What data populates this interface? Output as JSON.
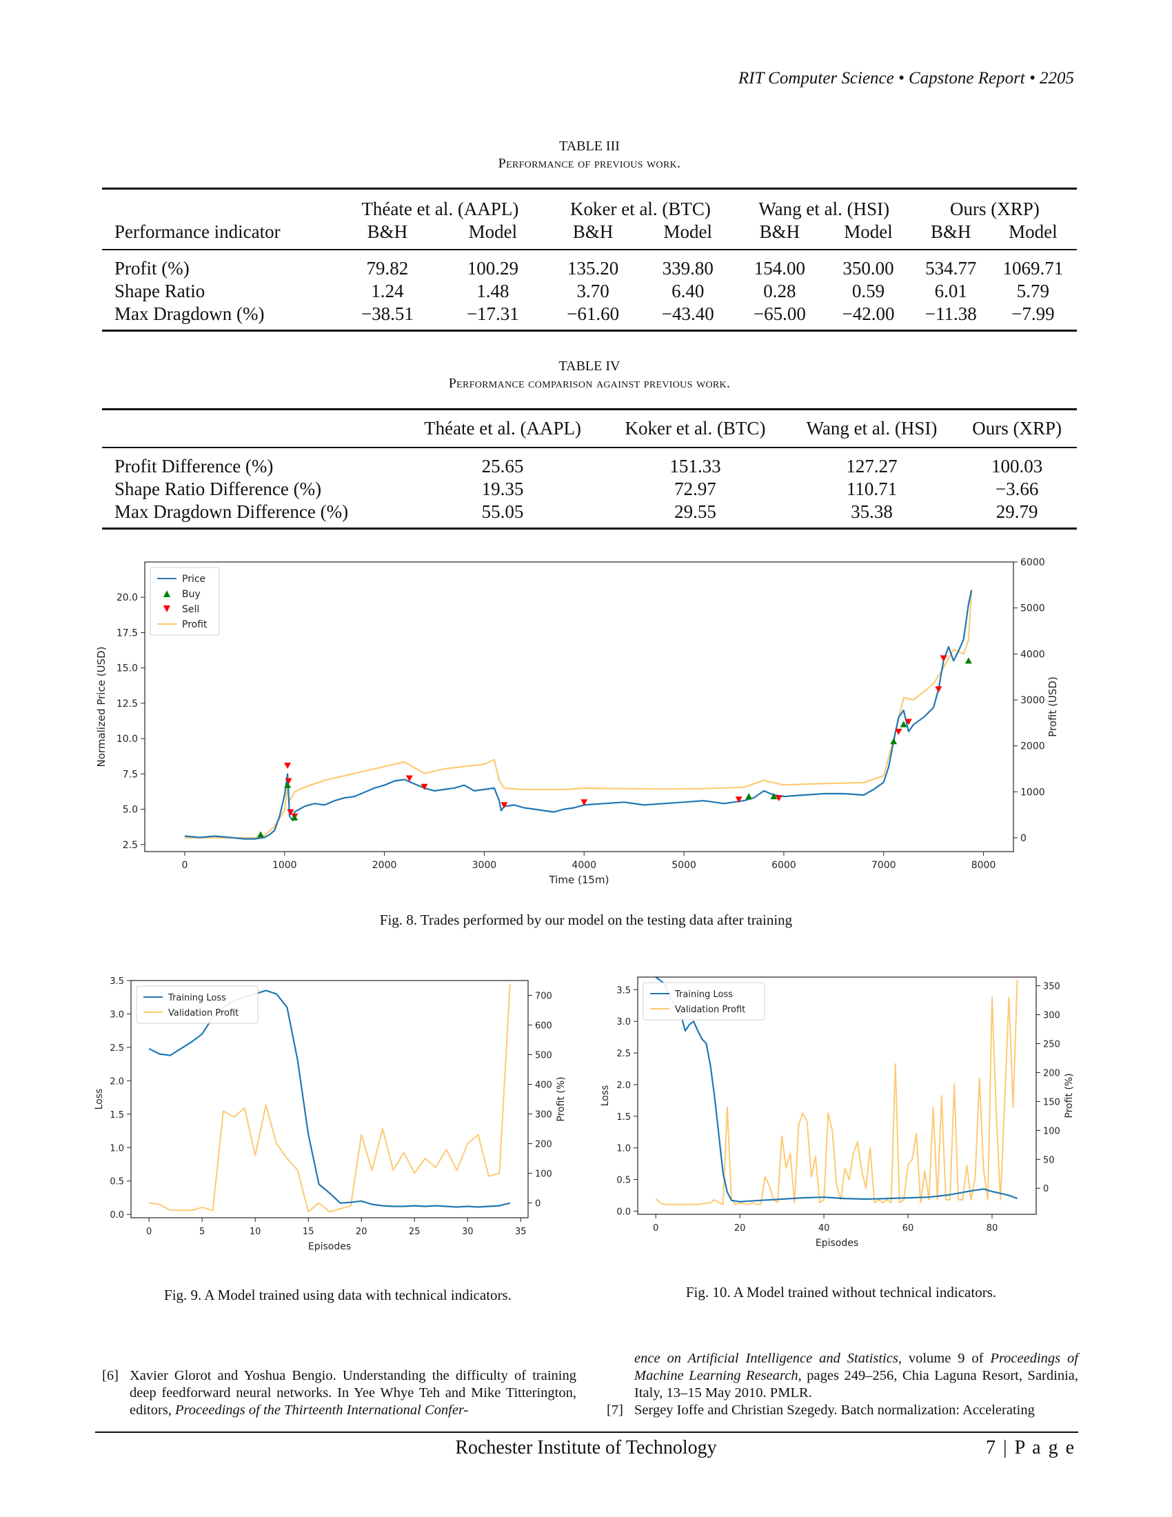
{
  "header": {
    "running_title": "RIT Computer Science  •  Capstone Report  •  2205"
  },
  "table3": {
    "label": "TABLE III",
    "caption": "Performance of previous work.",
    "row_header": "Performance indicator",
    "groups": [
      "Théate et al. (AAPL)",
      "Koker et al. (BTC)",
      "Wang et al. (HSI)",
      "Ours (XRP)"
    ],
    "subheaders": [
      "B&H",
      "Model",
      "B&H",
      "Model",
      "B&H",
      "Model",
      "B&H",
      "Model"
    ],
    "rows": [
      {
        "label": "Profit (%)",
        "values": [
          "79.82",
          "100.29",
          "135.20",
          "339.80",
          "154.00",
          "350.00",
          "534.77",
          "1069.71"
        ]
      },
      {
        "label": "Shape Ratio",
        "values": [
          "1.24",
          "1.48",
          "3.70",
          "6.40",
          "0.28",
          "0.59",
          "6.01",
          "5.79"
        ]
      },
      {
        "label": "Max Dragdown (%)",
        "values": [
          "−38.51",
          "−17.31",
          "−61.60",
          "−43.40",
          "−65.00",
          "−42.00",
          "−11.38",
          "−7.99"
        ]
      }
    ]
  },
  "table4": {
    "label": "TABLE IV",
    "caption": "Performance comparison against previous work.",
    "headers": [
      "Théate et al. (AAPL)",
      "Koker et al. (BTC)",
      "Wang et al. (HSI)",
      "Ours (XRP)"
    ],
    "rows": [
      {
        "label": "Profit Difference (%)",
        "values": [
          "25.65",
          "151.33",
          "127.27",
          "100.03"
        ]
      },
      {
        "label": "Shape Ratio Difference (%)",
        "values": [
          "19.35",
          "72.97",
          "110.71",
          "−3.66"
        ]
      },
      {
        "label": "Max Dragdown Difference (%)",
        "values": [
          "55.05",
          "29.55",
          "35.38",
          "29.79"
        ]
      }
    ]
  },
  "fig8": {
    "caption": "Fig. 8.  Trades performed by our model on the testing data after training",
    "chart_data": {
      "type": "line",
      "xlabel": "Time (15m)",
      "ylabel": "Normalized Price (USD)",
      "y2label": "Profit (USD)",
      "xlim": [
        -400,
        8300
      ],
      "ylim": [
        2.0,
        22.5
      ],
      "y2lim": [
        -300,
        6000
      ],
      "xticks": [
        0,
        1000,
        2000,
        3000,
        4000,
        5000,
        6000,
        7000,
        8000
      ],
      "yticks": [
        2.5,
        5.0,
        7.5,
        10.0,
        12.5,
        15.0,
        17.5,
        20.0
      ],
      "y2ticks": [
        0,
        1000,
        2000,
        3000,
        4000,
        5000,
        6000
      ],
      "legend": [
        "Price",
        "Buy",
        "Sell",
        "Profit"
      ],
      "legend_position": "top-left",
      "colors": {
        "price": "#1f77b4",
        "buy": "#008000",
        "sell": "#ff0000",
        "profit": "#fdc76b"
      },
      "price_x": [
        0,
        150,
        300,
        450,
        600,
        700,
        800,
        850,
        900,
        950,
        1000,
        1030,
        1050,
        1080,
        1100,
        1150,
        1200,
        1300,
        1400,
        1500,
        1600,
        1700,
        1800,
        1900,
        2000,
        2100,
        2200,
        2300,
        2400,
        2500,
        2600,
        2700,
        2800,
        2900,
        3000,
        3100,
        3150,
        3170,
        3200,
        3300,
        3400,
        3500,
        3600,
        3700,
        3800,
        3900,
        4000,
        4200,
        4400,
        4600,
        4800,
        5000,
        5200,
        5400,
        5600,
        5700,
        5800,
        5900,
        6000,
        6200,
        6400,
        6600,
        6800,
        6900,
        7000,
        7050,
        7100,
        7150,
        7200,
        7250,
        7300,
        7400,
        7500,
        7550,
        7600,
        7650,
        7700,
        7750,
        7800,
        7850,
        7880
      ],
      "price_y": [
        3.1,
        3.0,
        3.1,
        3.0,
        2.9,
        2.9,
        3.0,
        3.2,
        3.5,
        4.5,
        6.0,
        7.5,
        4.5,
        4.2,
        4.8,
        5.0,
        5.2,
        5.4,
        5.3,
        5.6,
        5.8,
        5.9,
        6.2,
        6.5,
        6.7,
        7.0,
        7.1,
        6.8,
        6.5,
        6.3,
        6.4,
        6.5,
        6.7,
        6.3,
        6.4,
        6.5,
        5.6,
        4.9,
        5.2,
        5.3,
        5.1,
        5.0,
        4.9,
        4.8,
        5.0,
        5.1,
        5.3,
        5.4,
        5.5,
        5.3,
        5.4,
        5.5,
        5.6,
        5.4,
        5.6,
        5.8,
        6.3,
        6.0,
        5.9,
        6.0,
        6.1,
        6.1,
        6.0,
        6.4,
        6.9,
        8.0,
        9.8,
        11.5,
        12.0,
        10.5,
        11.0,
        11.5,
        12.2,
        13.5,
        15.5,
        16.5,
        15.5,
        16.2,
        17.0,
        19.5,
        20.5
      ],
      "profit_x": [
        0,
        600,
        700,
        800,
        900,
        1000,
        1030,
        1050,
        1100,
        1200,
        1400,
        1600,
        1800,
        2000,
        2200,
        2400,
        2600,
        2800,
        3000,
        3100,
        3150,
        3200,
        3400,
        3600,
        3800,
        4000,
        4400,
        4800,
        5200,
        5600,
        5800,
        6000,
        6400,
        6800,
        7000,
        7100,
        7200,
        7300,
        7500,
        7600,
        7700,
        7800,
        7850,
        7880
      ],
      "profit_y": [
        0,
        0,
        0,
        50,
        250,
        600,
        1100,
        800,
        1000,
        1100,
        1250,
        1350,
        1450,
        1550,
        1650,
        1400,
        1500,
        1550,
        1600,
        1700,
        1250,
        1080,
        1050,
        1050,
        1050,
        1080,
        1070,
        1060,
        1070,
        1100,
        1250,
        1150,
        1180,
        1200,
        1350,
        2150,
        3050,
        3000,
        3350,
        3700,
        4100,
        4000,
        4300,
        5400
      ],
      "buy_points": [
        [
          760,
          3.2
        ],
        [
          1030,
          6.7
        ],
        [
          1100,
          4.4
        ],
        [
          5650,
          5.9
        ],
        [
          5900,
          5.9
        ],
        [
          7100,
          9.8
        ],
        [
          7200,
          11.0
        ],
        [
          7850,
          15.5
        ]
      ],
      "sell_points": [
        [
          1030,
          8.1
        ],
        [
          1040,
          7.0
        ],
        [
          1060,
          4.8
        ],
        [
          1100,
          4.5
        ],
        [
          2250,
          7.2
        ],
        [
          2400,
          6.6
        ],
        [
          3200,
          5.3
        ],
        [
          4000,
          5.5
        ],
        [
          5550,
          5.7
        ],
        [
          5950,
          5.8
        ],
        [
          7150,
          10.5
        ],
        [
          7250,
          11.2
        ],
        [
          7550,
          13.5
        ],
        [
          7600,
          15.7
        ]
      ]
    }
  },
  "fig9": {
    "caption": "Fig. 9.  A Model trained using data with technical indicators.",
    "chart_data": {
      "type": "line",
      "xlabel": "Episodes",
      "ylabel": "Loss",
      "y2label": "Profit (%)",
      "xlim": [
        -1.7,
        35.7
      ],
      "ylim": [
        -0.05,
        3.5
      ],
      "y2lim": [
        -50,
        750
      ],
      "xticks": [
        0,
        5,
        10,
        15,
        20,
        25,
        30,
        35
      ],
      "yticks": [
        0.0,
        0.5,
        1.0,
        1.5,
        2.0,
        2.5,
        3.0,
        3.5
      ],
      "y2ticks": [
        0,
        100,
        200,
        300,
        400,
        500,
        600,
        700
      ],
      "legend": [
        "Training Loss",
        "Validation Profit"
      ],
      "legend_position": "top-left",
      "colors": {
        "loss": "#1f77b4",
        "profit": "#fdc76b"
      },
      "loss_x": [
        0,
        1,
        2,
        3,
        4,
        5,
        6,
        7,
        8,
        9,
        10,
        11,
        12,
        13,
        14,
        15,
        16,
        17,
        18,
        19,
        20,
        21,
        22,
        23,
        24,
        25,
        26,
        27,
        28,
        29,
        30,
        31,
        32,
        33,
        34
      ],
      "loss_y": [
        2.48,
        2.4,
        2.38,
        2.48,
        2.58,
        2.7,
        2.95,
        3.1,
        3.2,
        3.25,
        3.3,
        3.35,
        3.3,
        3.1,
        2.3,
        1.2,
        0.45,
        0.32,
        0.17,
        0.18,
        0.2,
        0.15,
        0.13,
        0.12,
        0.12,
        0.13,
        0.12,
        0.13,
        0.12,
        0.11,
        0.12,
        0.11,
        0.12,
        0.13,
        0.17
      ],
      "profit_x": [
        0,
        1,
        2,
        3,
        4,
        5,
        6,
        7,
        8,
        9,
        10,
        11,
        12,
        13,
        14,
        15,
        16,
        17,
        18,
        19,
        20,
        21,
        22,
        23,
        24,
        25,
        26,
        27,
        28,
        29,
        30,
        31,
        32,
        33,
        34
      ],
      "profit_y": [
        0,
        -5,
        -25,
        -25,
        -25,
        -15,
        -25,
        310,
        290,
        320,
        160,
        330,
        200,
        150,
        110,
        -30,
        0,
        -30,
        -20,
        -10,
        230,
        110,
        250,
        110,
        170,
        100,
        150,
        120,
        180,
        110,
        200,
        230,
        90,
        100,
        740
      ]
    }
  },
  "fig10": {
    "caption": "Fig. 10.  A Model trained without technical indicators.",
    "chart_data": {
      "type": "line",
      "xlabel": "Episodes",
      "ylabel": "Loss",
      "y2label": "Profit (%)",
      "xlim": [
        -4.3,
        90.5
      ],
      "ylim": [
        -0.05,
        3.7
      ],
      "y2lim": [
        -45,
        365
      ],
      "xticks": [
        0,
        20,
        40,
        60,
        80
      ],
      "yticks": [
        0.0,
        0.5,
        1.0,
        1.5,
        2.0,
        2.5,
        3.0,
        3.5
      ],
      "y2ticks": [
        0,
        50,
        100,
        150,
        200,
        250,
        300,
        350
      ],
      "legend": [
        "Training Loss",
        "Validation Profit"
      ],
      "legend_position": "top-left",
      "colors": {
        "loss": "#1f77b4",
        "profit": "#fdc76b"
      },
      "loss_x": [
        0,
        2,
        4,
        6,
        7,
        8,
        9,
        10,
        11,
        12,
        13,
        14,
        15,
        16,
        17,
        18,
        20,
        25,
        30,
        35,
        40,
        45,
        50,
        55,
        60,
        65,
        70,
        75,
        78,
        80,
        82,
        84,
        86
      ],
      "loss_y": [
        3.7,
        3.6,
        3.3,
        3.1,
        2.85,
        2.95,
        3.0,
        2.85,
        2.72,
        2.65,
        2.3,
        1.8,
        1.2,
        0.6,
        0.3,
        0.17,
        0.15,
        0.17,
        0.19,
        0.21,
        0.22,
        0.2,
        0.19,
        0.2,
        0.21,
        0.22,
        0.26,
        0.32,
        0.35,
        0.31,
        0.28,
        0.25,
        0.2
      ],
      "profit_x": [
        0,
        1,
        2,
        5,
        10,
        13,
        14,
        15,
        16,
        17,
        18,
        19,
        20,
        22,
        23,
        24,
        25,
        26,
        27,
        28,
        29,
        30,
        31,
        32,
        33,
        34,
        35,
        36,
        37,
        38,
        39,
        40,
        41,
        42,
        43,
        44,
        45,
        46,
        47,
        48,
        49,
        50,
        51,
        52,
        53,
        54,
        55,
        56,
        57,
        58,
        59,
        60,
        61,
        62,
        63,
        64,
        65,
        66,
        67,
        68,
        69,
        70,
        71,
        72,
        73,
        74,
        75,
        76,
        77,
        78,
        79,
        80,
        81,
        82,
        83,
        84,
        85,
        86
      ],
      "profit_y": [
        -18,
        -25,
        -28,
        -28,
        -28,
        -25,
        -20,
        -25,
        -28,
        140,
        -20,
        -28,
        -25,
        -28,
        -25,
        -28,
        -28,
        20,
        5,
        -20,
        -25,
        90,
        35,
        60,
        -25,
        110,
        130,
        115,
        20,
        55,
        -25,
        -20,
        130,
        100,
        5,
        -20,
        35,
        15,
        60,
        80,
        30,
        0,
        70,
        -25,
        -20,
        -25,
        -20,
        -25,
        215,
        -25,
        -20,
        40,
        50,
        95,
        -25,
        30,
        -20,
        140,
        -20,
        160,
        -20,
        -20,
        180,
        -20,
        -20,
        40,
        -20,
        20,
        190,
        30,
        -20,
        330,
        130,
        -20,
        150,
        330,
        140,
        360
      ]
    }
  },
  "references": {
    "ref6_num": "[6]",
    "ref6_a": "Xavier Glorot and Yoshua Bengio.  Understanding the difficulty of training deep feedforward neural networks. In Yee Whye Teh and Mike Titterington, editors, ",
    "ref6_b": "Proceedings of the Thirteenth International Confer-",
    "ref6_c": "ence on Artificial Intelligence and Statistics",
    "ref6_d": ", volume 9 of ",
    "ref6_e": "Proceedings of Machine Learning Research",
    "ref6_f": ", pages 249–256, Chia Laguna Resort, Sardinia, Italy, 13–15 May 2010. PMLR.",
    "ref7_num": "[7]",
    "ref7_a": "Sergey Ioffe and Christian Szegedy. Batch normalization: Accelerating"
  },
  "footer": {
    "institution": "Rochester Institute of Technology",
    "page": "7 | P a g e"
  }
}
